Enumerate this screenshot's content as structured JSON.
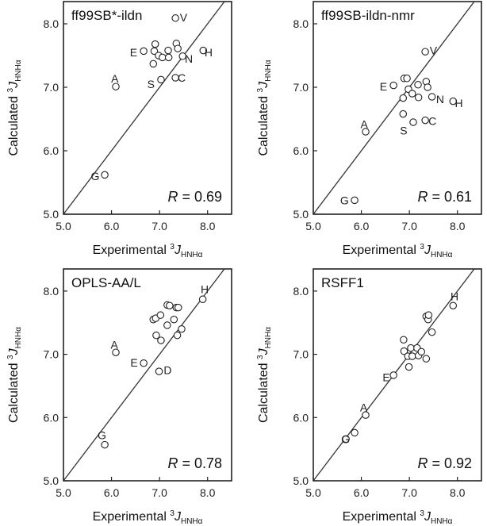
{
  "chart_data": [
    {
      "type": "scatter",
      "title": "ff99SB*-ildn",
      "r_label": "R",
      "r_value": "= 0.69",
      "xlabel": "Experimental",
      "ylabel": "Calculated",
      "axis_symbol": "J",
      "axis_superscript": "3",
      "axis_subscript": "HNHα",
      "xlim": [
        5.0,
        8.5
      ],
      "ylim": [
        5.0,
        8.35
      ],
      "xticks": [
        "5.0",
        "6.0",
        "7.0",
        "8.0"
      ],
      "yticks": [
        "5.0",
        "6.0",
        "7.0",
        "8.0"
      ],
      "diagonal": true,
      "points": [
        {
          "x": 5.86,
          "y": 5.62
        },
        {
          "x": 6.09,
          "y": 7.01
        },
        {
          "x": 6.67,
          "y": 7.57
        },
        {
          "x": 6.89,
          "y": 7.57
        },
        {
          "x": 6.91,
          "y": 7.68
        },
        {
          "x": 6.98,
          "y": 7.5
        },
        {
          "x": 7.06,
          "y": 7.47
        },
        {
          "x": 7.18,
          "y": 7.58
        },
        {
          "x": 7.19,
          "y": 7.47
        },
        {
          "x": 7.35,
          "y": 7.69
        },
        {
          "x": 7.38,
          "y": 7.61
        },
        {
          "x": 6.87,
          "y": 7.37
        },
        {
          "x": 7.03,
          "y": 7.12
        },
        {
          "x": 7.33,
          "y": 7.15
        },
        {
          "x": 7.48,
          "y": 7.49
        },
        {
          "x": 7.91,
          "y": 7.58
        },
        {
          "x": 7.33,
          "y": 8.09
        }
      ],
      "point_labels": [
        {
          "text": "G",
          "x": 5.66,
          "y": 5.6
        },
        {
          "text": "A",
          "x": 6.07,
          "y": 7.14
        },
        {
          "text": "E",
          "x": 6.46,
          "y": 7.55
        },
        {
          "text": "S",
          "x": 6.82,
          "y": 7.05
        },
        {
          "text": "C",
          "x": 7.46,
          "y": 7.15
        },
        {
          "text": "N",
          "x": 7.61,
          "y": 7.45
        },
        {
          "text": "H",
          "x": 8.02,
          "y": 7.55
        },
        {
          "text": "V",
          "x": 7.5,
          "y": 8.1
        }
      ]
    },
    {
      "type": "scatter",
      "title": "ff99SB-ildn-nmr",
      "r_label": "R",
      "r_value": "= 0.61",
      "xlabel": "Experimental",
      "ylabel": "Calculated",
      "axis_symbol": "J",
      "axis_superscript": "3",
      "axis_subscript": "HNHα",
      "xlim": [
        5.0,
        8.5
      ],
      "ylim": [
        5.0,
        8.35
      ],
      "xticks": [
        "5.0",
        "6.0",
        "7.0",
        "8.0"
      ],
      "yticks": [
        "5.0",
        "6.0",
        "7.0",
        "8.0"
      ],
      "diagonal": true,
      "points": [
        {
          "x": 5.86,
          "y": 5.22
        },
        {
          "x": 6.09,
          "y": 6.3
        },
        {
          "x": 6.67,
          "y": 7.03
        },
        {
          "x": 6.89,
          "y": 7.14
        },
        {
          "x": 6.95,
          "y": 7.14
        },
        {
          "x": 6.98,
          "y": 6.97
        },
        {
          "x": 7.06,
          "y": 6.9
        },
        {
          "x": 7.18,
          "y": 7.04
        },
        {
          "x": 7.19,
          "y": 6.84
        },
        {
          "x": 7.35,
          "y": 7.09
        },
        {
          "x": 7.38,
          "y": 7.0
        },
        {
          "x": 6.87,
          "y": 6.83
        },
        {
          "x": 6.87,
          "y": 6.58
        },
        {
          "x": 7.08,
          "y": 6.45
        },
        {
          "x": 7.33,
          "y": 6.48
        },
        {
          "x": 7.47,
          "y": 6.85
        },
        {
          "x": 7.91,
          "y": 6.78
        },
        {
          "x": 7.33,
          "y": 7.56
        }
      ],
      "point_labels": [
        {
          "text": "G",
          "x": 5.65,
          "y": 5.22
        },
        {
          "text": "A",
          "x": 6.06,
          "y": 6.42
        },
        {
          "text": "E",
          "x": 6.46,
          "y": 7.01
        },
        {
          "text": "S",
          "x": 6.88,
          "y": 6.32
        },
        {
          "text": "C",
          "x": 7.48,
          "y": 6.47
        },
        {
          "text": "N",
          "x": 7.64,
          "y": 6.81
        },
        {
          "text": "H",
          "x": 8.03,
          "y": 6.75
        },
        {
          "text": "V",
          "x": 7.5,
          "y": 7.58
        }
      ]
    },
    {
      "type": "scatter",
      "title": "OPLS-AA/L",
      "r_label": "R",
      "r_value": "= 0.78",
      "xlabel": "Experimental",
      "ylabel": "Calculated",
      "axis_symbol": "J",
      "axis_superscript": "3",
      "axis_subscript": "HNHα",
      "xlim": [
        5.0,
        8.5
      ],
      "ylim": [
        5.0,
        8.35
      ],
      "xticks": [
        "5.0",
        "6.0",
        "7.0",
        "8.0"
      ],
      "yticks": [
        "5.0",
        "6.0",
        "7.0",
        "8.0"
      ],
      "diagonal": true,
      "points": [
        {
          "x": 5.86,
          "y": 5.57
        },
        {
          "x": 6.09,
          "y": 7.03
        },
        {
          "x": 6.67,
          "y": 6.86
        },
        {
          "x": 6.87,
          "y": 7.55
        },
        {
          "x": 6.92,
          "y": 7.57
        },
        {
          "x": 7.02,
          "y": 7.62
        },
        {
          "x": 7.16,
          "y": 7.78
        },
        {
          "x": 7.21,
          "y": 7.77
        },
        {
          "x": 7.35,
          "y": 7.74
        },
        {
          "x": 7.39,
          "y": 7.74
        },
        {
          "x": 6.93,
          "y": 7.3
        },
        {
          "x": 7.03,
          "y": 7.22
        },
        {
          "x": 7.16,
          "y": 7.46
        },
        {
          "x": 7.3,
          "y": 7.55
        },
        {
          "x": 7.37,
          "y": 7.3
        },
        {
          "x": 7.46,
          "y": 7.4
        },
        {
          "x": 6.99,
          "y": 6.73
        },
        {
          "x": 7.9,
          "y": 7.87
        }
      ],
      "point_labels": [
        {
          "text": "G",
          "x": 5.8,
          "y": 5.72
        },
        {
          "text": "A",
          "x": 6.06,
          "y": 7.15
        },
        {
          "text": "E",
          "x": 6.47,
          "y": 6.87
        },
        {
          "text": "D",
          "x": 7.17,
          "y": 6.75
        },
        {
          "text": "H",
          "x": 7.94,
          "y": 8.03
        }
      ]
    },
    {
      "type": "scatter",
      "title": "RSFF1",
      "r_label": "R",
      "r_value": "= 0.92",
      "xlabel": "Experimental",
      "ylabel": "Calculated",
      "axis_symbol": "J",
      "axis_superscript": "3",
      "axis_subscript": "HNHα",
      "xlim": [
        5.0,
        8.5
      ],
      "ylim": [
        5.0,
        8.35
      ],
      "xticks": [
        "5.0",
        "6.0",
        "7.0",
        "8.0"
      ],
      "yticks": [
        "5.0",
        "6.0",
        "7.0",
        "8.0"
      ],
      "diagonal": true,
      "points": [
        {
          "x": 5.68,
          "y": 5.66
        },
        {
          "x": 5.86,
          "y": 5.76
        },
        {
          "x": 6.09,
          "y": 6.04
        },
        {
          "x": 6.67,
          "y": 6.67
        },
        {
          "x": 6.88,
          "y": 7.23
        },
        {
          "x": 6.89,
          "y": 7.05
        },
        {
          "x": 6.97,
          "y": 6.97
        },
        {
          "x": 6.99,
          "y": 6.8
        },
        {
          "x": 7.03,
          "y": 7.1
        },
        {
          "x": 7.06,
          "y": 6.97
        },
        {
          "x": 7.16,
          "y": 7.1
        },
        {
          "x": 7.19,
          "y": 6.98
        },
        {
          "x": 7.25,
          "y": 7.04
        },
        {
          "x": 7.35,
          "y": 6.93
        },
        {
          "x": 7.35,
          "y": 7.6
        },
        {
          "x": 7.39,
          "y": 7.55
        },
        {
          "x": 7.4,
          "y": 7.62
        },
        {
          "x": 7.47,
          "y": 7.35
        },
        {
          "x": 7.91,
          "y": 7.77
        }
      ],
      "point_labels": [
        {
          "text": "G",
          "x": 5.67,
          "y": 5.66
        },
        {
          "text": "A",
          "x": 6.05,
          "y": 6.16
        },
        {
          "text": "E",
          "x": 6.52,
          "y": 6.64
        },
        {
          "text": "H",
          "x": 7.94,
          "y": 7.92
        }
      ]
    }
  ]
}
